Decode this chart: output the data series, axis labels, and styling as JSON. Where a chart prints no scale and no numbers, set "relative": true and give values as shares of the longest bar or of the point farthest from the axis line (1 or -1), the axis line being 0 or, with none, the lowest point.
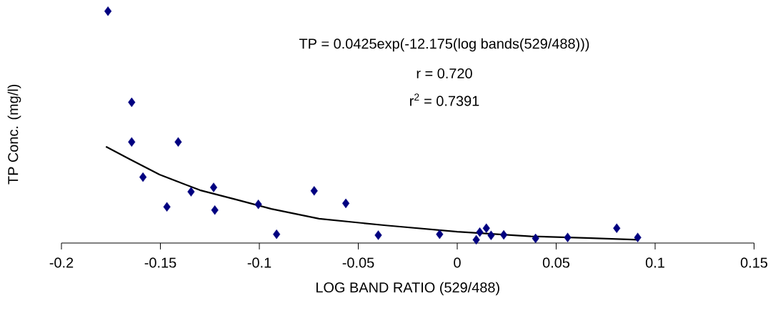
{
  "chart_data": {
    "type": "scatter",
    "relative": true,
    "marker": "diamond",
    "xlabel": "LOG BAND RATIO (529/488)",
    "ylabel": "TP Conc. (mg/l)",
    "annotations": [
      "TP = 0.0425exp(-12.175(log bands(529/488)))",
      "r = 0.720",
      "r$^{2}$ = 0.7391"
    ],
    "xlim": [
      -0.2,
      0.15
    ],
    "xticks": [
      -0.2,
      -0.15,
      -0.1,
      -0.05,
      0,
      0.05,
      0.1,
      0.15
    ],
    "series": [
      {
        "color": "#000080",
        "x": [
          -0.1765,
          -0.1645,
          -0.1645,
          -0.141,
          -0.1588,
          -0.1467,
          -0.1345,
          -0.1231,
          -0.1225,
          -0.1005,
          -0.0913,
          -0.0723,
          -0.0563,
          -0.0399,
          -0.0089,
          0.0096,
          0.0114,
          0.0147,
          0.0171,
          0.0235,
          0.0396,
          0.0558,
          0.0806,
          0.0912
        ],
        "values": [
          1,
          0.607,
          0.436,
          0.436,
          0.284,
          0.156,
          0.221,
          0.24,
          0.142,
          0.167,
          0.038,
          0.225,
          0.171,
          0.034,
          0.038,
          0.014,
          0.047,
          0.064,
          0.033,
          0.035,
          0.02,
          0.024,
          0.064,
          0.024
        ]
      },
      {
        "type": "line",
        "color": "#000000",
        "marker": "none",
        "line_style": "solid",
        "x": [
          -0.1775,
          -0.1661,
          -0.1504,
          -0.13,
          -0.1119,
          -0.0939,
          -0.0698,
          -0.0361,
          0,
          0.0372,
          0.065,
          0.091
        ],
        "values": [
          0.416,
          0.364,
          0.295,
          0.228,
          0.188,
          0.147,
          0.105,
          0.076,
          0.049,
          0.029,
          0.022,
          0.014
        ]
      }
    ]
  }
}
